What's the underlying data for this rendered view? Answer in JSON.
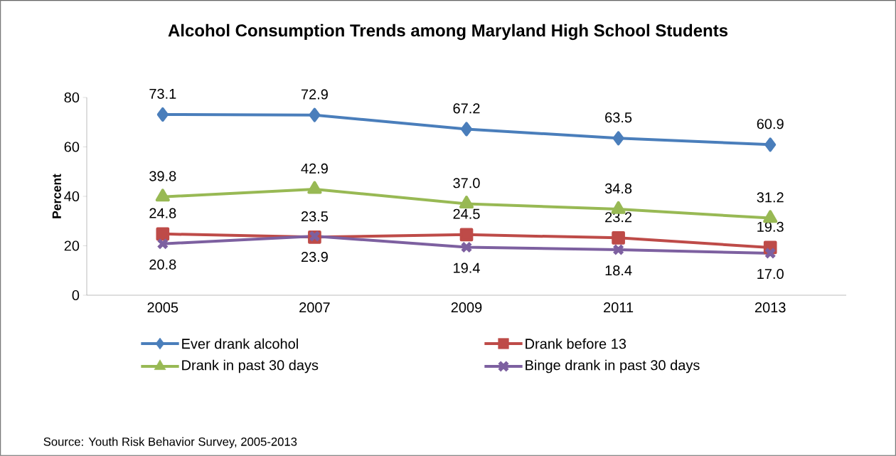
{
  "chart_data": {
    "type": "line",
    "title": "Alcohol Consumption Trends among Maryland High School Students",
    "ylabel": "Percent",
    "categories": [
      "2005",
      "2007",
      "2009",
      "2011",
      "2013"
    ],
    "ylim": [
      0,
      80
    ],
    "yticks": [
      0,
      20,
      40,
      60,
      80
    ],
    "legend": "bottom",
    "annotations": [
      "Source: Youth Risk Behavior Survey, 2005-2013"
    ],
    "series": [
      {
        "name": "Ever drank alcohol",
        "color": "#4a7ebb",
        "marker": "diamond",
        "values": [
          73.1,
          72.9,
          67.2,
          63.5,
          60.9
        ],
        "value_labels": [
          "73.1",
          "72.9",
          "67.2",
          "63.5",
          "60.9"
        ]
      },
      {
        "name": "Drank before 13",
        "color": "#be4b48",
        "marker": "square",
        "values": [
          24.8,
          23.5,
          24.5,
          23.2,
          19.3
        ],
        "value_labels": [
          "24.8",
          "23.5",
          "24.5",
          "23.2",
          "19.3"
        ]
      },
      {
        "name": "Drank in past 30 days",
        "color": "#98b954",
        "marker": "triangle",
        "values": [
          39.8,
          42.9,
          37.0,
          34.8,
          31.2
        ],
        "value_labels": [
          "39.8",
          "42.9",
          "37.0",
          "34.8",
          "31.2"
        ]
      },
      {
        "name": "Binge drank in past 30 days",
        "color": "#7d60a0",
        "marker": "cross",
        "values": [
          20.8,
          23.9,
          19.4,
          18.4,
          17.0
        ],
        "value_labels": [
          "20.8",
          "23.9",
          "19.4",
          "18.4",
          "17.0"
        ]
      }
    ]
  }
}
